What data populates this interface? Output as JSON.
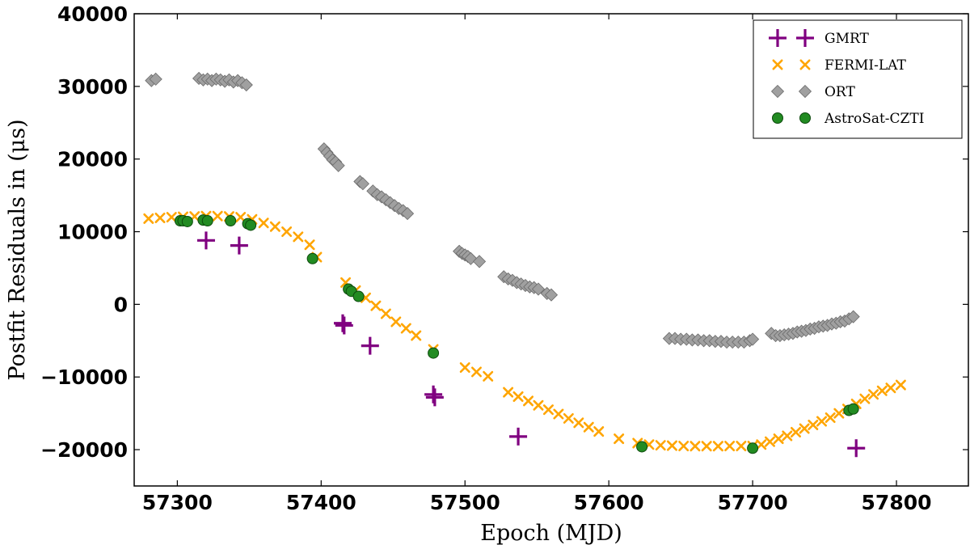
{
  "chart_data": {
    "type": "scatter",
    "xlabel": "Epoch (MJD)",
    "ylabel": "Postfit Residuals in (μs)",
    "xlim": [
      57270,
      57850
    ],
    "ylim": [
      -25000,
      40000
    ],
    "xticks": [
      57300,
      57400,
      57500,
      57600,
      57700,
      57800
    ],
    "yticks": [
      40000,
      30000,
      20000,
      10000,
      0,
      -10000,
      -20000
    ],
    "ytick_labels": [
      "40000",
      "30000",
      "20000",
      "10000",
      "0",
      "−10000",
      "−20000"
    ],
    "legend_position": "top-right",
    "series": [
      {
        "name": "GMRT",
        "marker": "plus",
        "color": "#800080",
        "x": [
          57320,
          57343,
          57415,
          57416,
          57434,
          57478,
          57479,
          57537,
          57772
        ],
        "y": [
          8800,
          8100,
          -2600,
          -2900,
          -5700,
          -12400,
          -12800,
          -18200,
          -19800
        ]
      },
      {
        "name": "FERMI-LAT",
        "marker": "x",
        "color": "#FFA500",
        "x": [
          57280,
          57288,
          57296,
          57304,
          57312,
          57320,
          57328,
          57336,
          57344,
          57352,
          57360,
          57368,
          57376,
          57384,
          57392,
          57397,
          57417,
          57424,
          57431,
          57438,
          57445,
          57452,
          57459,
          57466,
          57478,
          57500,
          57508,
          57516,
          57530,
          57537,
          57544,
          57551,
          57558,
          57565,
          57572,
          57579,
          57586,
          57593,
          57607,
          57620,
          57628,
          57636,
          57644,
          57652,
          57660,
          57668,
          57676,
          57684,
          57692,
          57700,
          57706,
          57712,
          57718,
          57724,
          57730,
          57736,
          57742,
          57748,
          57754,
          57760,
          57766,
          57772,
          57778,
          57784,
          57790,
          57796,
          57803
        ],
        "y": [
          11800,
          11900,
          12000,
          12050,
          12100,
          12150,
          12150,
          12100,
          12000,
          11700,
          11200,
          10700,
          10000,
          9300,
          8200,
          6500,
          3000,
          1900,
          900,
          -200,
          -1300,
          -2400,
          -3300,
          -4300,
          -6200,
          -8700,
          -9300,
          -9900,
          -12100,
          -12700,
          -13300,
          -13900,
          -14500,
          -15100,
          -15700,
          -16300,
          -16900,
          -17500,
          -18500,
          -19100,
          -19300,
          -19400,
          -19450,
          -19500,
          -19520,
          -19520,
          -19520,
          -19500,
          -19500,
          -19500,
          -19300,
          -18900,
          -18500,
          -18100,
          -17600,
          -17100,
          -16600,
          -16100,
          -15600,
          -15000,
          -14400,
          -13700,
          -13000,
          -12400,
          -11900,
          -11500,
          -11100
        ]
      },
      {
        "name": "ORT",
        "marker": "diamond",
        "color": "#A0A0A0",
        "x": [
          57282,
          57285,
          57315,
          57318,
          57321,
          57324,
          57327,
          57330,
          57333,
          57336,
          57339,
          57342,
          57345,
          57348,
          57402,
          57404,
          57406,
          57408,
          57410,
          57412,
          57427,
          57429,
          57436,
          57439,
          57442,
          57445,
          57448,
          57451,
          57454,
          57457,
          57460,
          57496,
          57498,
          57500,
          57502,
          57504,
          57510,
          57527,
          57530,
          57533,
          57536,
          57539,
          57542,
          57545,
          57548,
          57551,
          57557,
          57560,
          57642,
          57646,
          57650,
          57654,
          57658,
          57662,
          57666,
          57670,
          57674,
          57678,
          57682,
          57686,
          57690,
          57694,
          57698,
          57700,
          57713,
          57716,
          57719,
          57722,
          57725,
          57728,
          57731,
          57734,
          57737,
          57740,
          57743,
          57746,
          57749,
          57752,
          57755,
          57758,
          57761,
          57764,
          57767,
          57770
        ],
        "y": [
          30800,
          31000,
          31100,
          30900,
          31000,
          30800,
          31000,
          30900,
          30700,
          30900,
          30600,
          30800,
          30500,
          30200,
          21400,
          20900,
          20400,
          19900,
          19600,
          19100,
          16900,
          16600,
          15600,
          15100,
          14800,
          14400,
          14000,
          13600,
          13200,
          12900,
          12500,
          7300,
          7000,
          6800,
          6600,
          6300,
          5900,
          3800,
          3500,
          3300,
          3000,
          2800,
          2600,
          2400,
          2300,
          2100,
          1500,
          1300,
          -4700,
          -4700,
          -4800,
          -4800,
          -4900,
          -4900,
          -5000,
          -5000,
          -5100,
          -5100,
          -5200,
          -5200,
          -5200,
          -5200,
          -5000,
          -4800,
          -4000,
          -4300,
          -4300,
          -4200,
          -4100,
          -4000,
          -3800,
          -3700,
          -3600,
          -3400,
          -3300,
          -3100,
          -3000,
          -2900,
          -2700,
          -2600,
          -2400,
          -2300,
          -2000,
          -1700
        ]
      },
      {
        "name": "AstroSat-CZTI",
        "marker": "circle",
        "color": "#228B22",
        "x": [
          57302,
          57304,
          57307,
          57318,
          57321,
          57337,
          57349,
          57351,
          57394,
          57419,
          57421,
          57426,
          57478,
          57623,
          57700,
          57767,
          57770
        ],
        "y": [
          11500,
          11500,
          11400,
          11600,
          11500,
          11500,
          11100,
          10900,
          6300,
          2100,
          1800,
          1100,
          -6700,
          -19600,
          -19800,
          -14600,
          -14400
        ]
      }
    ]
  }
}
